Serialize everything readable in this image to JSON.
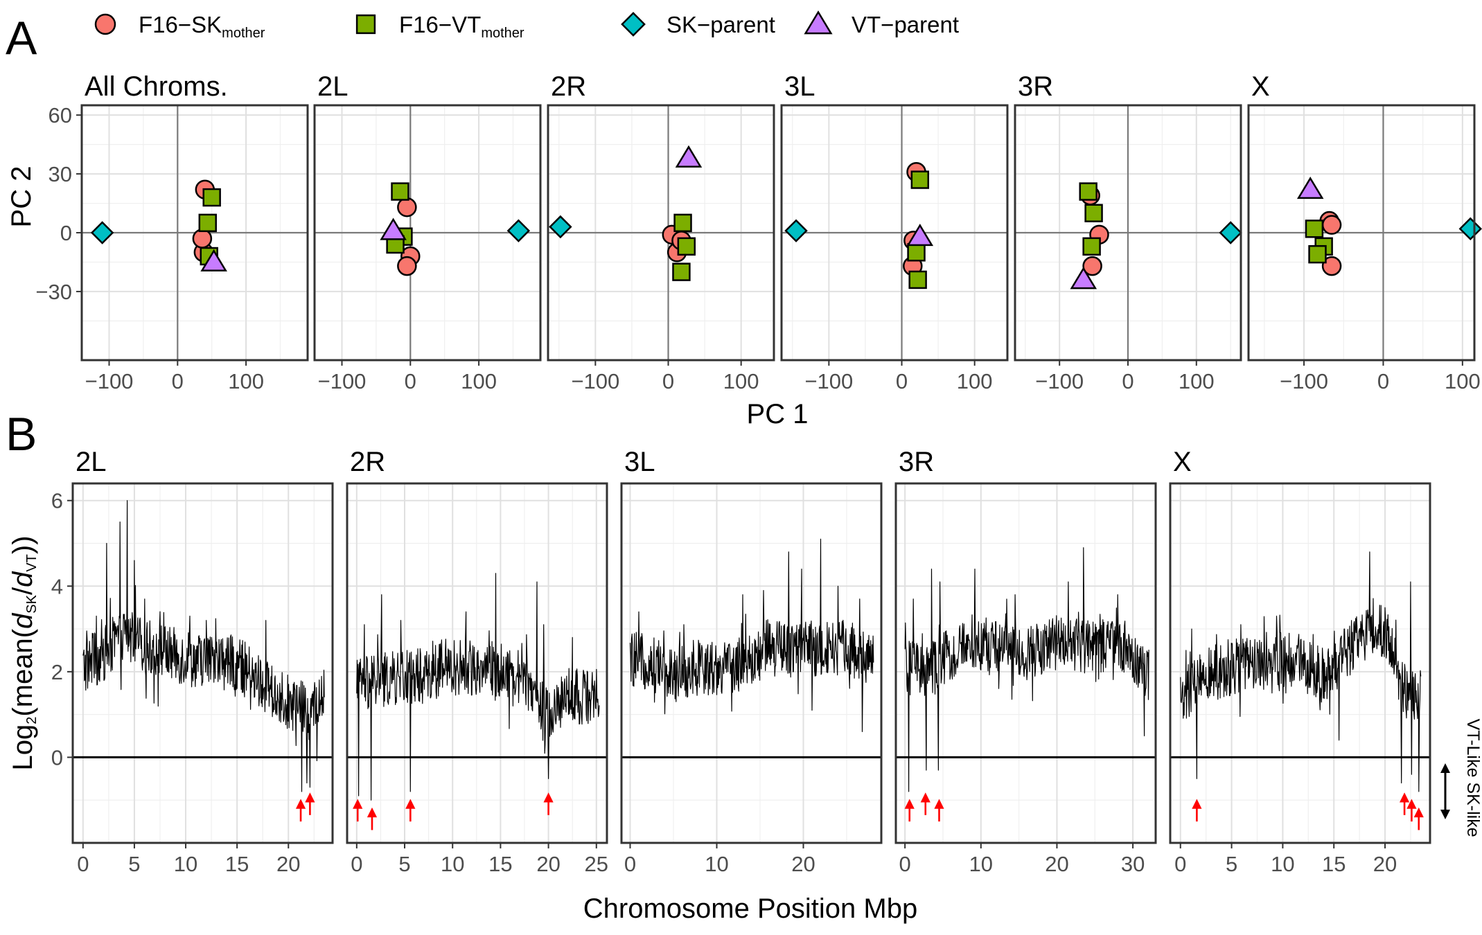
{
  "figure": {
    "panel_a_letter": "A",
    "panel_b_letter": "B",
    "legend": [
      {
        "key": "f16_sk",
        "base": "F16−SK",
        "sub": "mother",
        "shape": "circle",
        "color": "#f8766d"
      },
      {
        "key": "f16_vt",
        "base": "F16−VT",
        "sub": "mother",
        "shape": "square",
        "color": "#7cae00"
      },
      {
        "key": "sk",
        "base": "SK−parent",
        "sub": "",
        "shape": "diamond",
        "color": "#00bfc4"
      },
      {
        "key": "vt",
        "base": "VT−parent",
        "sub": "",
        "shape": "triangle",
        "color": "#c77cff"
      }
    ],
    "side_labels": {
      "up": "VT-Like",
      "down": "SK-like"
    }
  },
  "chart_data": [
    {
      "type": "scatter",
      "xlabel": "PC 1",
      "ylabel": "PC 2",
      "ylim": [
        -65,
        65
      ],
      "yticks": [
        -30,
        0,
        30,
        60
      ],
      "grid": true,
      "legend_position": "top",
      "facets": [
        {
          "title": "All Chroms.",
          "xlim": [
            -140,
            190
          ],
          "xticks": [
            -100,
            0,
            100
          ],
          "points": [
            {
              "group": "f16_sk",
              "x": 40,
              "y": 22
            },
            {
              "group": "f16_sk",
              "x": 38,
              "y": -10
            },
            {
              "group": "f16_sk",
              "x": 36,
              "y": -3
            },
            {
              "group": "f16_vt",
              "x": 50,
              "y": 18
            },
            {
              "group": "f16_vt",
              "x": 44,
              "y": 5
            },
            {
              "group": "f16_vt",
              "x": 46,
              "y": -12
            },
            {
              "group": "sk",
              "x": -110,
              "y": 0
            },
            {
              "group": "vt",
              "x": 53,
              "y": -15
            }
          ]
        },
        {
          "title": "2L",
          "xlim": [
            -140,
            190
          ],
          "xticks": [
            -100,
            0,
            100
          ],
          "points": [
            {
              "group": "f16_sk",
              "x": -5,
              "y": 13
            },
            {
              "group": "f16_sk",
              "x": 0,
              "y": -12
            },
            {
              "group": "f16_sk",
              "x": -5,
              "y": -17
            },
            {
              "group": "f16_vt",
              "x": -15,
              "y": 21
            },
            {
              "group": "f16_vt",
              "x": -10,
              "y": -2
            },
            {
              "group": "f16_vt",
              "x": -22,
              "y": -6
            },
            {
              "group": "sk",
              "x": 158,
              "y": 1
            },
            {
              "group": "vt",
              "x": -25,
              "y": 1
            }
          ]
        },
        {
          "title": "2R",
          "xlim": [
            -165,
            145
          ],
          "xticks": [
            -100,
            0,
            100
          ],
          "points": [
            {
              "group": "f16_sk",
              "x": 5,
              "y": -1
            },
            {
              "group": "f16_sk",
              "x": 12,
              "y": -10
            },
            {
              "group": "f16_sk",
              "x": 18,
              "y": -4
            },
            {
              "group": "f16_vt",
              "x": 20,
              "y": 5
            },
            {
              "group": "f16_vt",
              "x": 25,
              "y": -7
            },
            {
              "group": "f16_vt",
              "x": 18,
              "y": -20
            },
            {
              "group": "sk",
              "x": -148,
              "y": 3
            },
            {
              "group": "vt",
              "x": 28,
              "y": 38
            }
          ]
        },
        {
          "title": "3L",
          "xlim": [
            -165,
            145
          ],
          "xticks": [
            -100,
            0,
            100
          ],
          "points": [
            {
              "group": "f16_sk",
              "x": 20,
              "y": 31
            },
            {
              "group": "f16_sk",
              "x": 16,
              "y": -4
            },
            {
              "group": "f16_sk",
              "x": 15,
              "y": -17
            },
            {
              "group": "f16_vt",
              "x": 25,
              "y": 27
            },
            {
              "group": "f16_vt",
              "x": 20,
              "y": -10
            },
            {
              "group": "f16_vt",
              "x": 22,
              "y": -24
            },
            {
              "group": "sk",
              "x": -145,
              "y": 1
            },
            {
              "group": "vt",
              "x": 25,
              "y": -2
            }
          ]
        },
        {
          "title": "3R",
          "xlim": [
            -165,
            165
          ],
          "xticks": [
            -100,
            0,
            100
          ],
          "points": [
            {
              "group": "f16_sk",
              "x": -55,
              "y": 19
            },
            {
              "group": "f16_sk",
              "x": -42,
              "y": -1
            },
            {
              "group": "f16_sk",
              "x": -52,
              "y": -17
            },
            {
              "group": "f16_vt",
              "x": -58,
              "y": 21
            },
            {
              "group": "f16_vt",
              "x": -50,
              "y": 10
            },
            {
              "group": "f16_vt",
              "x": -53,
              "y": -7
            },
            {
              "group": "sk",
              "x": 150,
              "y": 0
            },
            {
              "group": "vt",
              "x": -65,
              "y": -24
            }
          ]
        },
        {
          "title": "X",
          "xlim": [
            -170,
            115
          ],
          "xticks": [
            -100,
            0,
            100
          ],
          "points": [
            {
              "group": "f16_sk",
              "x": -68,
              "y": 6
            },
            {
              "group": "f16_sk",
              "x": -65,
              "y": 4
            },
            {
              "group": "f16_sk",
              "x": -65,
              "y": -17
            },
            {
              "group": "f16_vt",
              "x": -87,
              "y": 2
            },
            {
              "group": "f16_vt",
              "x": -75,
              "y": -7
            },
            {
              "group": "f16_vt",
              "x": -83,
              "y": -11
            },
            {
              "group": "sk",
              "x": 110,
              "y": 2
            },
            {
              "group": "vt",
              "x": -92,
              "y": 22
            }
          ]
        }
      ]
    },
    {
      "type": "line",
      "xlabel": "Chromosome Position Mbp",
      "ylabel": "Log₂(mean(dₛₖ/dᵥₜ))",
      "ylabel_parts": {
        "pre": "Log",
        "sub2": "2",
        "mid": "(mean(",
        "d1": "d",
        "sub_sk": "SK",
        "slash": "/",
        "d2": "d",
        "sub_vt": "VT",
        "post": "))"
      },
      "ylim": [
        -2,
        6.4
      ],
      "yticks": [
        0,
        2,
        4,
        6
      ],
      "grid": true,
      "facets": [
        {
          "title": "2L",
          "length": 23.5,
          "xlim": [
            -1,
            24.3
          ],
          "xticks": [
            0,
            5,
            10,
            15,
            20
          ],
          "profile": [
            [
              0,
              2.1
            ],
            [
              2,
              2.4
            ],
            [
              4,
              2.9
            ],
            [
              6,
              2.6
            ],
            [
              10,
              2.3
            ],
            [
              15,
              2.2
            ],
            [
              19,
              1.4
            ],
            [
              21,
              1.2
            ],
            [
              22,
              1.0
            ],
            [
              23.5,
              1.4
            ]
          ],
          "peaks": [
            [
              0.9,
              2.9
            ],
            [
              1.3,
              3.3
            ],
            [
              2.3,
              5.0
            ],
            [
              3.6,
              5.5
            ],
            [
              4.3,
              6.0
            ],
            [
              5.0,
              4.6
            ],
            [
              6.0,
              3.7
            ],
            [
              10.4,
              3.3
            ],
            [
              12.0,
              3.2
            ],
            [
              17.8,
              3.2
            ]
          ],
          "dips": [
            [
              21.3,
              -0.8
            ],
            [
              21.8,
              -0.6
            ],
            [
              22.1,
              -0.7
            ]
          ],
          "arrows": [
            21.2,
            22.1
          ]
        },
        {
          "title": "2R",
          "length": 25.3,
          "xlim": [
            -1,
            26.1
          ],
          "xticks": [
            0,
            5,
            10,
            15,
            20,
            25
          ],
          "profile": [
            [
              0,
              1.7
            ],
            [
              3,
              1.8
            ],
            [
              6,
              1.9
            ],
            [
              10,
              2.1
            ],
            [
              14,
              2.1
            ],
            [
              16,
              2.0
            ],
            [
              18,
              1.7
            ],
            [
              20,
              0.9
            ],
            [
              22,
              1.5
            ],
            [
              25.3,
              1.3
            ]
          ],
          "peaks": [
            [
              0.8,
              3.1
            ],
            [
              2.6,
              3.8
            ],
            [
              4.6,
              3.2
            ],
            [
              11.4,
              3.4
            ],
            [
              14.5,
              4.3
            ],
            [
              18.8,
              4.1
            ],
            [
              19.5,
              3.1
            ],
            [
              22.5,
              2.8
            ]
          ],
          "dips": [
            [
              0.2,
              -0.9
            ],
            [
              1.5,
              -1.0
            ],
            [
              5.6,
              -0.8
            ],
            [
              20.0,
              -0.5
            ]
          ],
          "arrows": [
            0.1,
            1.6,
            5.6,
            20.0
          ]
        },
        {
          "title": "3L",
          "length": 28.1,
          "xlim": [
            -1,
            29
          ],
          "xticks": [
            0,
            10,
            20
          ],
          "profile": [
            [
              0,
              2.3
            ],
            [
              3,
              2.2
            ],
            [
              5,
              2.0
            ],
            [
              8,
              2.1
            ],
            [
              12,
              2.1
            ],
            [
              16,
              2.5
            ],
            [
              20,
              2.6
            ],
            [
              22,
              2.5
            ],
            [
              25,
              2.6
            ],
            [
              28.1,
              2.2
            ]
          ],
          "peaks": [
            [
              1.0,
              3.4
            ],
            [
              6.2,
              3.1
            ],
            [
              13.0,
              3.8
            ],
            [
              15.4,
              3.9
            ],
            [
              18.3,
              4.8
            ],
            [
              19.8,
              4.4
            ],
            [
              22.0,
              5.1
            ],
            [
              24.0,
              4.0
            ],
            [
              26.5,
              3.7
            ]
          ],
          "dips": [
            [
              5.3,
              1.3
            ],
            [
              9.2,
              1.6
            ],
            [
              21.0,
              1.1
            ],
            [
              26.8,
              0.6
            ]
          ],
          "arrows": []
        },
        {
          "title": "3R",
          "length": 32.1,
          "xlim": [
            -1.2,
            33
          ],
          "xticks": [
            0,
            10,
            20,
            30
          ],
          "profile": [
            [
              0,
              2.1
            ],
            [
              3,
              2.0
            ],
            [
              6,
              2.4
            ],
            [
              9,
              2.7
            ],
            [
              12,
              2.6
            ],
            [
              16,
              2.4
            ],
            [
              20,
              2.7
            ],
            [
              24,
              2.6
            ],
            [
              28,
              2.6
            ],
            [
              32.1,
              1.9
            ]
          ],
          "peaks": [
            [
              1.1,
              3.7
            ],
            [
              3.5,
              4.4
            ],
            [
              4.6,
              4.1
            ],
            [
              9.2,
              4.4
            ],
            [
              14.5,
              3.8
            ],
            [
              21.5,
              4.1
            ],
            [
              23.5,
              4.9
            ],
            [
              28.0,
              3.8
            ]
          ],
          "dips": [
            [
              0.5,
              -0.8
            ],
            [
              2.8,
              -0.3
            ],
            [
              4.4,
              -0.3
            ],
            [
              31.5,
              0.5
            ]
          ],
          "arrows": [
            0.6,
            2.7,
            4.5
          ]
        },
        {
          "title": "X",
          "length": 23.5,
          "xlim": [
            -1,
            24.4
          ],
          "xticks": [
            0,
            5,
            10,
            15,
            20
          ],
          "profile": [
            [
              0,
              1.4
            ],
            [
              2,
              1.8
            ],
            [
              5,
              2.1
            ],
            [
              8,
              2.3
            ],
            [
              11,
              2.3
            ],
            [
              14,
              1.9
            ],
            [
              16,
              2.4
            ],
            [
              19,
              3.1
            ],
            [
              20.5,
              2.7
            ],
            [
              21.5,
              1.6
            ],
            [
              23.5,
              1.4
            ]
          ],
          "peaks": [
            [
              1.1,
              3.0
            ],
            [
              5.9,
              3.1
            ],
            [
              9.4,
              3.3
            ],
            [
              18.5,
              4.8
            ],
            [
              20.0,
              3.5
            ],
            [
              22.5,
              4.1
            ]
          ],
          "dips": [
            [
              1.6,
              -0.5
            ],
            [
              15.5,
              0.4
            ],
            [
              21.6,
              -0.6
            ],
            [
              22.6,
              -0.4
            ],
            [
              23.3,
              -0.8
            ]
          ],
          "arrows": [
            1.6,
            21.9,
            22.6,
            23.3
          ]
        }
      ]
    }
  ]
}
